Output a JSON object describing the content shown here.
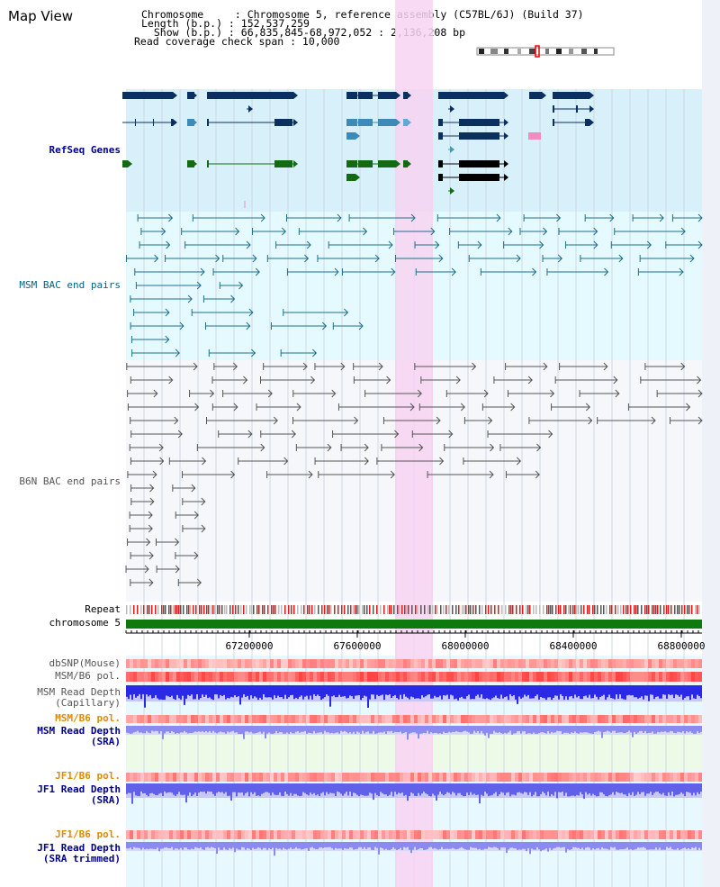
{
  "header": {
    "title": "Map View",
    "info_lines": [
      "Chromosome     : Chromosome 5, reference assembly (C57BL/6J) (Build 37)",
      "Length (b.p.) : 152,537,259",
      "  Show (b.p.) : 66,835,845-68,972,052 : 2,136,208 bp",
      "Read coverage check span : 10,000"
    ]
  },
  "tracks": {
    "refseq": "RefSeq Genes",
    "msm_bac": "MSM BAC end pairs",
    "b6n_bac": "B6N BAC end pairs",
    "repeat": "Repeat",
    "chromosome": "chromosome 5",
    "dbsnp": "dbSNP(Mouse)",
    "msm_b6_pol_1": "MSM/B6 pol.",
    "msm_read_depth_cap_1": "MSM Read Depth",
    "msm_read_depth_cap_2": "(Capillary)",
    "msm_b6_pol_2": "MSM/B6 pol.",
    "msm_read_depth_sra_1": "MSM Read Depth",
    "msm_read_depth_sra_2": "(SRA)",
    "jf1_b6_pol_1": "JF1/B6 pol.",
    "jf1_read_depth_1": "JF1 Read Depth",
    "jf1_read_depth_2": "(SRA)",
    "jf1_b6_pol_2": "JF1/B6 pol.",
    "jf1_read_depth_trim_1": "JF1 Read Depth",
    "jf1_read_depth_trim_2": "(SRA trimmed)"
  },
  "axis": {
    "ticks": [
      "67200000",
      "67600000",
      "68000000",
      "68400000",
      "68800000"
    ]
  },
  "colors": {
    "refseq_bg": "#d8f0fa",
    "msm_bg": "#e4faff",
    "b6n_bg": "#f5f7fa",
    "highlight": "#f8d4f2",
    "gene_dark": "#0b2f5f",
    "gene_mid": "#3d8ab8",
    "gene_green": "#136a13",
    "msm_line": "#1e6f8a",
    "b6n_line": "#555555",
    "chrom_bar": "#0e7a0e",
    "depth_blue": "#2a2ae6",
    "depth_light": "#8a8af0",
    "pol_red": "#e04040"
  },
  "icons": {
    "ideogram": "chromosome-ideogram-icon"
  }
}
